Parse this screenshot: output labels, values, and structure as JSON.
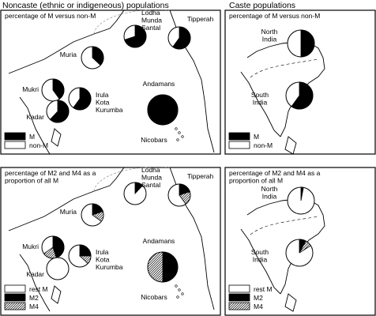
{
  "titles": {
    "noncaste": "Noncaste (ethnic or indigeneous) populations",
    "caste": "Caste populations"
  },
  "panels": {
    "top_left": {
      "heading": [
        "percentage of M versus non-M"
      ],
      "legend": [
        {
          "label": "M",
          "pattern": "black"
        },
        {
          "label": "non-M",
          "pattern": "white"
        }
      ]
    },
    "top_right": {
      "heading": [
        "percentage of M versus non-M"
      ],
      "legend": [
        {
          "label": "M",
          "pattern": "black"
        },
        {
          "label": "non-M",
          "pattern": "white"
        }
      ]
    },
    "bottom_left": {
      "heading": [
        "percentage of M2 and M4 as a",
        "proportion of all M"
      ],
      "legend": [
        {
          "label": "rest M",
          "pattern": "white"
        },
        {
          "label": "M2",
          "pattern": "black"
        },
        {
          "label": "M4",
          "pattern": "hatch"
        }
      ]
    },
    "bottom_right": {
      "heading": [
        "percentage of M2 and M4 as a",
        "proportion of all M"
      ],
      "legend": [
        {
          "label": "rest M",
          "pattern": "white"
        },
        {
          "label": "M2",
          "pattern": "black"
        },
        {
          "label": "M4",
          "pattern": "hatch"
        }
      ]
    }
  },
  "populations": {
    "lodha_munda_santal": [
      "Lodha",
      "Munda",
      "Santal"
    ],
    "tipperah": "Tipperah",
    "muria": "Muria",
    "mukri": "Mukri",
    "irula_kota_kurumba": [
      "Irula",
      "Kota",
      "Kurumba"
    ],
    "kadar": "Kadar",
    "andamans": "Andamans",
    "nicobars": "Nicobars",
    "north_india": [
      "North",
      "India"
    ],
    "south_india": [
      "South",
      "India"
    ]
  },
  "pie_data": {
    "m_vs_nonm": [
      {
        "population": "Lodha Munda Santal",
        "m_pct": 70
      },
      {
        "population": "Tipperah",
        "m_pct": 60
      },
      {
        "population": "Muria",
        "m_pct": 37
      },
      {
        "population": "Mukri",
        "m_pct": 40
      },
      {
        "population": "Irula Kota Kurumba",
        "m_pct": 60
      },
      {
        "population": "Kadar",
        "m_pct": 62
      },
      {
        "population": "Andamans",
        "m_pct": 100
      },
      {
        "population": "North India",
        "m_pct": 50
      },
      {
        "population": "South India",
        "m_pct": 60
      }
    ],
    "m2_m4_of_m": [
      {
        "population": "Lodha Munda Santal",
        "m2_pct": 12,
        "m4_pct": 0
      },
      {
        "population": "Tipperah",
        "m2_pct": 20,
        "m4_pct": 20
      },
      {
        "population": "Muria",
        "m2_pct": 20,
        "m4_pct": 15
      },
      {
        "population": "Mukri",
        "m2_pct": 45,
        "m4_pct": 20
      },
      {
        "population": "Irula Kota Kurumba",
        "m2_pct": 25,
        "m4_pct": 12
      },
      {
        "population": "Kadar",
        "m2_pct": 0,
        "m4_pct": 0
      },
      {
        "population": "Andamans",
        "m2_pct": 50,
        "m4_pct": 50
      },
      {
        "population": "North India",
        "m2_pct": 3,
        "m4_pct": 0
      },
      {
        "population": "South India",
        "m2_pct": 8,
        "m4_pct": 8
      }
    ]
  }
}
